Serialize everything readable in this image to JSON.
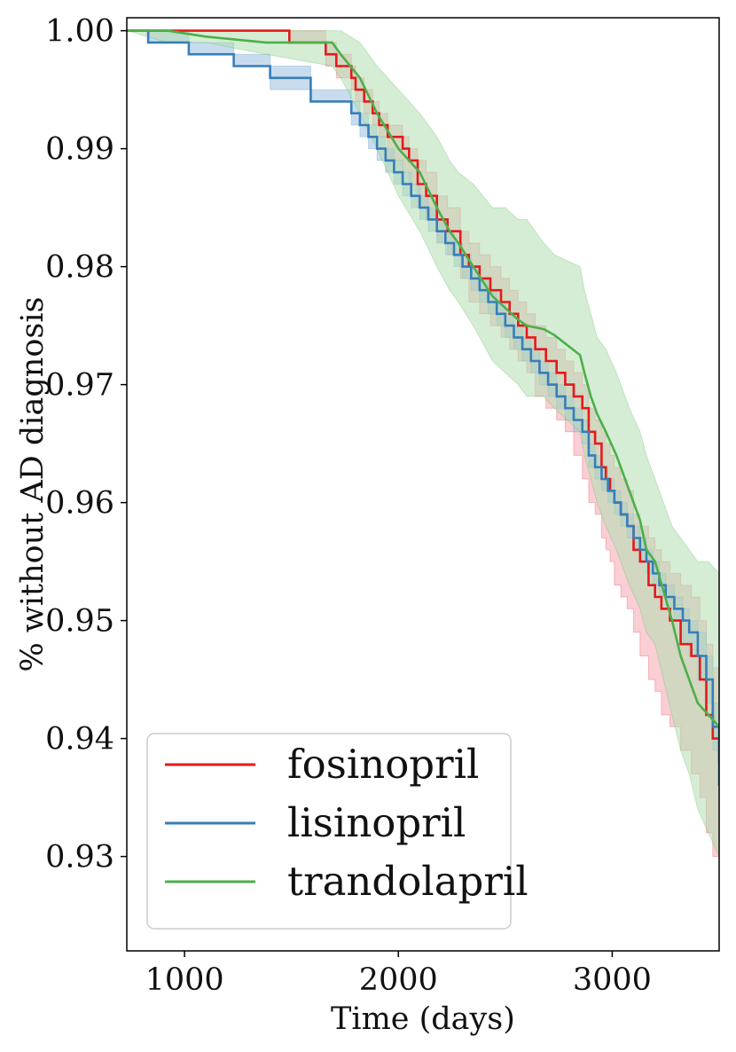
{
  "chart_data": {
    "type": "line",
    "xlabel": "Time (days)",
    "ylabel": "% without AD diagnosis",
    "xlim": [
      730,
      3500
    ],
    "ylim": [
      0.922,
      1.0011
    ],
    "x_ticks": [
      {
        "value": 1000,
        "label": "1000"
      },
      {
        "value": 2000,
        "label": "2000"
      },
      {
        "value": 3000,
        "label": "3000"
      }
    ],
    "y_ticks": [
      {
        "value": 1.0,
        "label": "1.00"
      },
      {
        "value": 0.99,
        "label": "0.99"
      },
      {
        "value": 0.98,
        "label": "0.98"
      },
      {
        "value": 0.97,
        "label": "0.97"
      },
      {
        "value": 0.96,
        "label": "0.96"
      },
      {
        "value": 0.95,
        "label": "0.95"
      },
      {
        "value": 0.94,
        "label": "0.94"
      },
      {
        "value": 0.93,
        "label": "0.93"
      }
    ],
    "grid": false,
    "legend_position": "lower-left",
    "series": [
      {
        "name": "fosinopril",
        "color": "#e41a1c",
        "band_color": "#f4a6b0",
        "step": true,
        "x": [
          730,
          1490,
          1660,
          1710,
          1780,
          1800,
          1840,
          1880,
          1910,
          1950,
          2020,
          2050,
          2090,
          2130,
          2180,
          2230,
          2290,
          2330,
          2380,
          2430,
          2480,
          2520,
          2560,
          2600,
          2640,
          2690,
          2740,
          2780,
          2820,
          2860,
          2890,
          2920,
          2950,
          2970,
          2990,
          3010,
          3040,
          3070,
          3100,
          3130,
          3170,
          3200,
          3230,
          3270,
          3320,
          3370,
          3410,
          3440,
          3470,
          3500
        ],
        "y": [
          1.0,
          0.999,
          0.998,
          0.997,
          0.996,
          0.995,
          0.994,
          0.993,
          0.992,
          0.991,
          0.99,
          0.989,
          0.987,
          0.986,
          0.984,
          0.983,
          0.981,
          0.98,
          0.979,
          0.978,
          0.977,
          0.976,
          0.975,
          0.974,
          0.973,
          0.972,
          0.971,
          0.97,
          0.969,
          0.968,
          0.966,
          0.965,
          0.963,
          0.962,
          0.961,
          0.96,
          0.959,
          0.958,
          0.956,
          0.955,
          0.953,
          0.952,
          0.951,
          0.95,
          0.948,
          0.947,
          0.945,
          0.942,
          0.94,
          0.938
        ],
        "ci_low": [
          1.0,
          0.999,
          0.997,
          0.996,
          0.995,
          0.994,
          0.993,
          0.992,
          0.991,
          0.989,
          0.988,
          0.987,
          0.985,
          0.984,
          0.982,
          0.981,
          0.979,
          0.977,
          0.976,
          0.975,
          0.974,
          0.973,
          0.972,
          0.971,
          0.969,
          0.968,
          0.967,
          0.966,
          0.964,
          0.962,
          0.96,
          0.959,
          0.957,
          0.956,
          0.955,
          0.953,
          0.952,
          0.951,
          0.949,
          0.947,
          0.945,
          0.944,
          0.942,
          0.941,
          0.939,
          0.937,
          0.935,
          0.932,
          0.93,
          0.929
        ],
        "ci_high": [
          1.0,
          1.0,
          0.999,
          0.998,
          0.997,
          0.996,
          0.995,
          0.994,
          0.993,
          0.992,
          0.991,
          0.99,
          0.989,
          0.988,
          0.986,
          0.985,
          0.983,
          0.982,
          0.981,
          0.98,
          0.979,
          0.978,
          0.977,
          0.976,
          0.975,
          0.974,
          0.973,
          0.972,
          0.971,
          0.97,
          0.968,
          0.967,
          0.966,
          0.965,
          0.964,
          0.963,
          0.962,
          0.961,
          0.959,
          0.958,
          0.957,
          0.956,
          0.955,
          0.954,
          0.953,
          0.952,
          0.95,
          0.948,
          0.946,
          0.944
        ]
      },
      {
        "name": "lisinopril",
        "color": "#377eb8",
        "band_color": "#9cc0e0",
        "step": true,
        "x": [
          730,
          830,
          1020,
          1230,
          1400,
          1590,
          1780,
          1820,
          1860,
          1900,
          1940,
          1980,
          2020,
          2060,
          2100,
          2140,
          2180,
          2220,
          2260,
          2300,
          2340,
          2380,
          2420,
          2460,
          2500,
          2540,
          2580,
          2620,
          2660,
          2700,
          2740,
          2780,
          2820,
          2860,
          2890,
          2920,
          2950,
          2980,
          3010,
          3040,
          3070,
          3100,
          3130,
          3160,
          3190,
          3220,
          3250,
          3290,
          3330,
          3360,
          3400,
          3440,
          3470,
          3500
        ],
        "y": [
          1.0,
          0.999,
          0.998,
          0.997,
          0.996,
          0.994,
          0.993,
          0.992,
          0.991,
          0.99,
          0.989,
          0.988,
          0.987,
          0.986,
          0.985,
          0.984,
          0.983,
          0.982,
          0.981,
          0.98,
          0.979,
          0.978,
          0.977,
          0.976,
          0.975,
          0.974,
          0.973,
          0.972,
          0.971,
          0.97,
          0.969,
          0.968,
          0.967,
          0.966,
          0.964,
          0.963,
          0.962,
          0.961,
          0.96,
          0.959,
          0.958,
          0.957,
          0.956,
          0.955,
          0.954,
          0.953,
          0.952,
          0.951,
          0.95,
          0.949,
          0.947,
          0.945,
          0.941,
          0.936
        ],
        "ci_low": [
          1.0,
          0.999,
          0.998,
          0.997,
          0.995,
          0.994,
          0.992,
          0.991,
          0.99,
          0.989,
          0.988,
          0.987,
          0.986,
          0.985,
          0.984,
          0.983,
          0.982,
          0.981,
          0.98,
          0.979,
          0.978,
          0.977,
          0.976,
          0.975,
          0.974,
          0.973,
          0.972,
          0.971,
          0.97,
          0.969,
          0.968,
          0.967,
          0.966,
          0.965,
          0.963,
          0.962,
          0.961,
          0.96,
          0.959,
          0.958,
          0.957,
          0.956,
          0.955,
          0.954,
          0.953,
          0.952,
          0.951,
          0.95,
          0.948,
          0.947,
          0.945,
          0.943,
          0.939,
          0.935
        ],
        "ci_high": [
          1.0,
          1.0,
          0.999,
          0.998,
          0.997,
          0.995,
          0.994,
          0.993,
          0.992,
          0.991,
          0.99,
          0.989,
          0.988,
          0.987,
          0.986,
          0.985,
          0.984,
          0.983,
          0.982,
          0.981,
          0.98,
          0.979,
          0.978,
          0.977,
          0.976,
          0.975,
          0.974,
          0.973,
          0.972,
          0.971,
          0.97,
          0.969,
          0.968,
          0.967,
          0.965,
          0.964,
          0.963,
          0.962,
          0.961,
          0.96,
          0.959,
          0.958,
          0.957,
          0.956,
          0.955,
          0.954,
          0.953,
          0.952,
          0.951,
          0.95,
          0.949,
          0.947,
          0.943,
          0.938
        ]
      },
      {
        "name": "trandolapril",
        "color": "#4daf4a",
        "band_color": "#b2deb0",
        "step": false,
        "x": [
          730,
          920,
          1100,
          1380,
          1690,
          1730,
          1820,
          1900,
          2000,
          2100,
          2180,
          2240,
          2280,
          2350,
          2440,
          2500,
          2560,
          2600,
          2680,
          2730,
          2850,
          2870,
          2900,
          2930,
          2970,
          3020,
          3080,
          3130,
          3160,
          3200,
          3240,
          3280,
          3320,
          3360,
          3400,
          3450,
          3500
        ],
        "y": [
          1.0,
          1.0,
          0.9995,
          0.999,
          0.999,
          0.998,
          0.996,
          0.993,
          0.99,
          0.988,
          0.985,
          0.983,
          0.982,
          0.98,
          0.9775,
          0.9765,
          0.9755,
          0.975,
          0.9747,
          0.9742,
          0.9725,
          0.971,
          0.969,
          0.9675,
          0.966,
          0.964,
          0.961,
          0.9585,
          0.956,
          0.955,
          0.9525,
          0.95,
          0.947,
          0.945,
          0.943,
          0.942,
          0.941
        ],
        "ci_low": [
          1.0,
          0.999,
          0.999,
          0.998,
          0.997,
          0.996,
          0.993,
          0.99,
          0.986,
          0.983,
          0.98,
          0.978,
          0.977,
          0.975,
          0.972,
          0.971,
          0.97,
          0.969,
          0.969,
          0.968,
          0.966,
          0.964,
          0.962,
          0.96,
          0.958,
          0.956,
          0.953,
          0.951,
          0.949,
          0.948,
          0.945,
          0.942,
          0.939,
          0.937,
          0.934,
          0.932,
          0.93
        ],
        "ci_high": [
          1.0,
          1.0,
          1.0,
          1.0,
          1.0,
          1.0,
          0.999,
          0.997,
          0.995,
          0.993,
          0.991,
          0.989,
          0.988,
          0.987,
          0.985,
          0.985,
          0.984,
          0.984,
          0.982,
          0.981,
          0.98,
          0.978,
          0.976,
          0.974,
          0.973,
          0.971,
          0.968,
          0.966,
          0.964,
          0.962,
          0.96,
          0.958,
          0.957,
          0.956,
          0.955,
          0.955,
          0.954
        ]
      }
    ]
  }
}
